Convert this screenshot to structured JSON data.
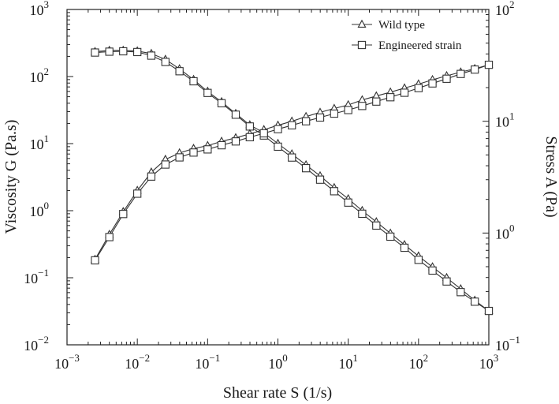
{
  "chart_data": {
    "type": "line",
    "xlabel": "Shear rate S (1/s)",
    "ylabel_left": "Viscosity G (Pa.s)",
    "ylabel_right": "Stress A (Pa)",
    "x_scale": "log",
    "y_left_scale": "log",
    "y_right_scale": "log",
    "xlim": [
      0.001,
      1000
    ],
    "ylim_left": [
      0.01,
      1000
    ],
    "ylim_right": [
      0.1,
      100
    ],
    "x_ticks": [
      {
        "base": "10",
        "exp": "−3"
      },
      {
        "base": "10",
        "exp": "−2"
      },
      {
        "base": "10",
        "exp": "−1"
      },
      {
        "base": "10",
        "exp": "0"
      },
      {
        "base": "10",
        "exp": "1"
      },
      {
        "base": "10",
        "exp": "2"
      },
      {
        "base": "10",
        "exp": "3"
      }
    ],
    "y_left_ticks": [
      {
        "base": "10",
        "exp": "−2"
      },
      {
        "base": "10",
        "exp": "−1"
      },
      {
        "base": "10",
        "exp": "0"
      },
      {
        "base": "10",
        "exp": "1"
      },
      {
        "base": "10",
        "exp": "2"
      },
      {
        "base": "10",
        "exp": "3"
      }
    ],
    "y_right_ticks": [
      {
        "base": "10",
        "exp": "−1"
      },
      {
        "base": "10",
        "exp": "0"
      },
      {
        "base": "10",
        "exp": "1"
      },
      {
        "base": "10",
        "exp": "2"
      }
    ],
    "legend": {
      "position": "top-right",
      "entries": [
        {
          "label": "Wild type",
          "marker": "triangle"
        },
        {
          "label": "Engineered strain",
          "marker": "square"
        }
      ]
    },
    "x": [
      0.0025,
      0.004,
      0.0063,
      0.01,
      0.0158,
      0.0251,
      0.0398,
      0.0631,
      0.1,
      0.158,
      0.251,
      0.398,
      0.631,
      1,
      1.58,
      2.51,
      3.98,
      6.31,
      10,
      15.8,
      25.1,
      39.8,
      63.1,
      100,
      158,
      251,
      398,
      631,
      1000
    ],
    "series": [
      {
        "name": "Wild type",
        "quantity": "viscosity",
        "axis": "left",
        "marker": "triangle",
        "values": [
          235,
          245,
          245,
          240,
          220,
          180,
          130,
          90,
          60,
          42,
          28,
          19,
          14.5,
          10,
          7,
          4.8,
          3.3,
          2.2,
          1.5,
          1.0,
          0.68,
          0.46,
          0.31,
          0.21,
          0.145,
          0.1,
          0.068,
          0.046,
          0.032
        ]
      },
      {
        "name": "Engineered strain",
        "quantity": "viscosity",
        "axis": "left",
        "marker": "square",
        "values": [
          228,
          235,
          238,
          232,
          205,
          165,
          120,
          85,
          57,
          40,
          27,
          18,
          13.2,
          9,
          6.2,
          4.3,
          2.9,
          1.95,
          1.32,
          0.9,
          0.6,
          0.41,
          0.28,
          0.185,
          0.128,
          0.088,
          0.061,
          0.044,
          0.032
        ]
      },
      {
        "name": "Wild type",
        "quantity": "stress",
        "axis": "right",
        "marker": "triangle",
        "values": [
          0.58,
          0.97,
          1.55,
          2.4,
          3.5,
          4.55,
          5.2,
          5.7,
          6.05,
          6.6,
          7.1,
          7.7,
          8.4,
          9.2,
          10,
          11,
          12,
          13,
          14,
          15.5,
          16.8,
          18.2,
          19.8,
          21.5,
          23.5,
          25.5,
          27.5,
          29.5,
          32
        ]
      },
      {
        "name": "Engineered strain",
        "quantity": "stress",
        "axis": "right",
        "marker": "square",
        "values": [
          0.57,
          0.92,
          1.48,
          2.25,
          3.2,
          4.1,
          4.75,
          5.25,
          5.6,
          6.1,
          6.6,
          7.2,
          7.8,
          8.5,
          9.2,
          10,
          10.8,
          11.7,
          12.6,
          13.7,
          15,
          16.4,
          18,
          19.8,
          21.8,
          24,
          26.5,
          29,
          32
        ]
      }
    ]
  }
}
